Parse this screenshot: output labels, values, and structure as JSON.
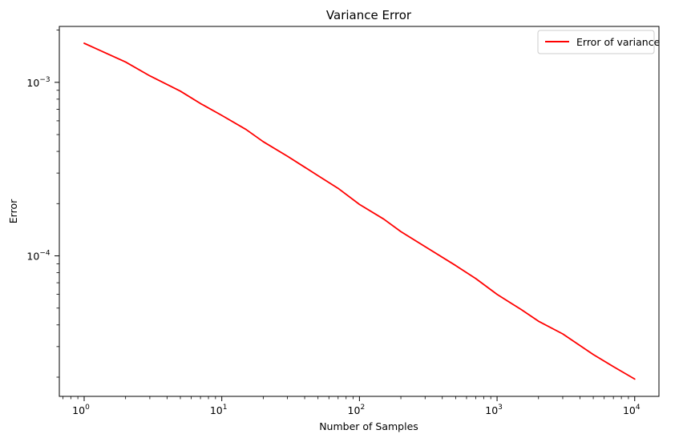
{
  "chart_data": {
    "type": "line",
    "title": "Variance Error",
    "xlabel": "Number of Samples",
    "ylabel": "Error",
    "xscale": "log",
    "yscale": "log",
    "xlim": [
      0.66,
      15000
    ],
    "ylim": [
      1.55e-05,
      0.0021
    ],
    "grid": false,
    "legend_position": "top-right",
    "x_ticks": [
      {
        "value": 1,
        "base": "10",
        "exp": "0"
      },
      {
        "value": 10,
        "base": "10",
        "exp": "1"
      },
      {
        "value": 100,
        "base": "10",
        "exp": "2"
      },
      {
        "value": 1000,
        "base": "10",
        "exp": "3"
      },
      {
        "value": 10000,
        "base": "10",
        "exp": "4"
      }
    ],
    "y_ticks": [
      {
        "value": 0.001,
        "base": "10",
        "exp": "−3"
      },
      {
        "value": 0.0001,
        "base": "10",
        "exp": "−4"
      }
    ],
    "series": [
      {
        "name": "Error of variance",
        "color": "#ff0000",
        "points": [
          [
            1,
            0.00168
          ],
          [
            2,
            0.00131
          ],
          [
            3,
            0.00109
          ],
          [
            5,
            0.00089
          ],
          [
            7,
            0.000755
          ],
          [
            10,
            0.000645
          ],
          [
            15,
            0.000535
          ],
          [
            20,
            0.000455
          ],
          [
            30,
            0.000375
          ],
          [
            50,
            0.00029
          ],
          [
            70,
            0.000245
          ],
          [
            100,
            0.000198
          ],
          [
            150,
            0.000163
          ],
          [
            200,
            0.000138
          ],
          [
            300,
            0.000113
          ],
          [
            500,
            8.8e-05
          ],
          [
            700,
            7.4e-05
          ],
          [
            1000,
            6e-05
          ],
          [
            1500,
            4.9e-05
          ],
          [
            2000,
            4.2e-05
          ],
          [
            3000,
            3.55e-05
          ],
          [
            5000,
            2.7e-05
          ],
          [
            7000,
            2.3e-05
          ],
          [
            10000,
            1.95e-05
          ]
        ]
      }
    ]
  }
}
